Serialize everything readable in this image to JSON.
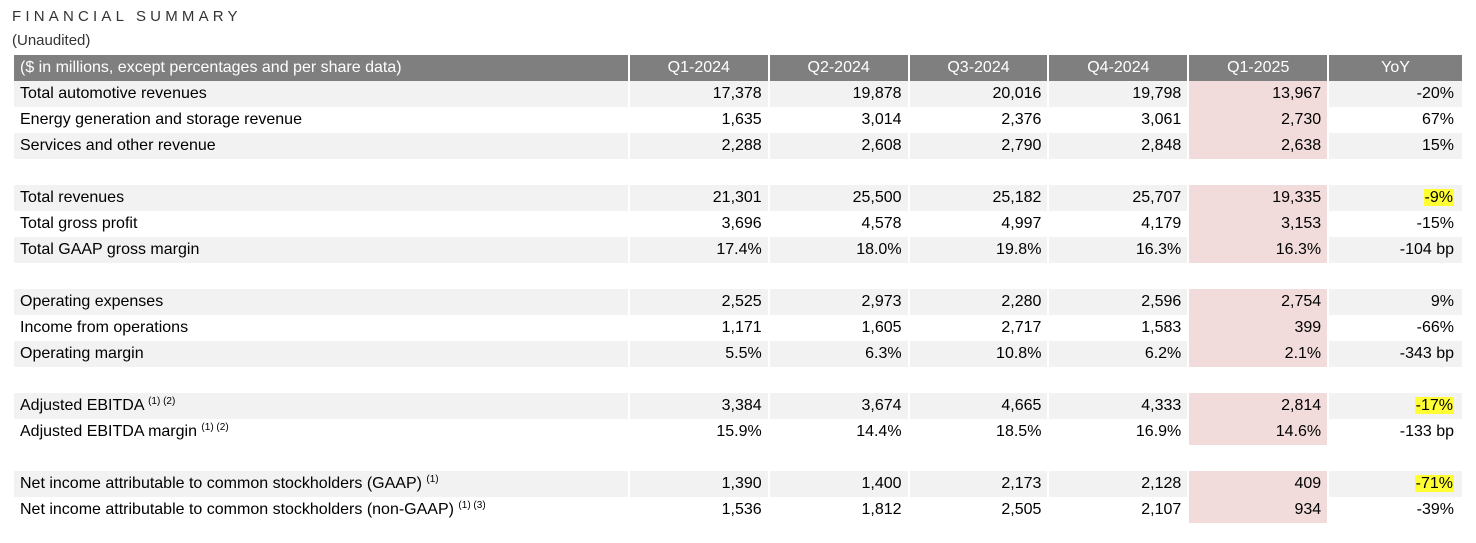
{
  "title": "FINANCIAL SUMMARY",
  "subtitle": "(Unaudited)",
  "table": {
    "header": [
      "($ in millions, except percentages and per share data)",
      "Q1-2024",
      "Q2-2024",
      "Q3-2024",
      "Q4-2024",
      "Q1-2025",
      "YoY"
    ],
    "groups": [
      [
        {
          "label": "Total automotive revenues",
          "sup": "",
          "values": [
            "17,378",
            "19,878",
            "20,016",
            "19,798",
            "13,967"
          ],
          "yoy": "-20%",
          "yoy_highlight": false
        },
        {
          "label": "Energy generation and storage revenue",
          "sup": "",
          "values": [
            "1,635",
            "3,014",
            "2,376",
            "3,061",
            "2,730"
          ],
          "yoy": "67%",
          "yoy_highlight": false
        },
        {
          "label": "Services and other revenue",
          "sup": "",
          "values": [
            "2,288",
            "2,608",
            "2,790",
            "2,848",
            "2,638"
          ],
          "yoy": "15%",
          "yoy_highlight": false
        }
      ],
      [
        {
          "label": "Total revenues",
          "sup": "",
          "values": [
            "21,301",
            "25,500",
            "25,182",
            "25,707",
            "19,335"
          ],
          "yoy": "-9%",
          "yoy_highlight": true
        },
        {
          "label": "Total gross profit",
          "sup": "",
          "values": [
            "3,696",
            "4,578",
            "4,997",
            "4,179",
            "3,153"
          ],
          "yoy": "-15%",
          "yoy_highlight": false
        },
        {
          "label": "Total GAAP gross margin",
          "sup": "",
          "values": [
            "17.4%",
            "18.0%",
            "19.8%",
            "16.3%",
            "16.3%"
          ],
          "yoy": "-104 bp",
          "yoy_highlight": false
        }
      ],
      [
        {
          "label": "Operating expenses",
          "sup": "",
          "values": [
            "2,525",
            "2,973",
            "2,280",
            "2,596",
            "2,754"
          ],
          "yoy": "9%",
          "yoy_highlight": false
        },
        {
          "label": "Income from operations",
          "sup": "",
          "values": [
            "1,171",
            "1,605",
            "2,717",
            "1,583",
            "399"
          ],
          "yoy": "-66%",
          "yoy_highlight": false
        },
        {
          "label": "Operating margin",
          "sup": "",
          "values": [
            "5.5%",
            "6.3%",
            "10.8%",
            "6.2%",
            "2.1%"
          ],
          "yoy": "-343 bp",
          "yoy_highlight": false
        }
      ],
      [
        {
          "label": "Adjusted EBITDA",
          "sup": "(1) (2)",
          "values": [
            "3,384",
            "3,674",
            "4,665",
            "4,333",
            "2,814"
          ],
          "yoy": "-17%",
          "yoy_highlight": true
        },
        {
          "label": "Adjusted EBITDA margin",
          "sup": "(1) (2)",
          "values": [
            "15.9%",
            "14.4%",
            "18.5%",
            "16.9%",
            "14.6%"
          ],
          "yoy": "-133 bp",
          "yoy_highlight": false
        }
      ],
      [
        {
          "label": "Net income attributable to common stockholders (GAAP)",
          "sup": "(1)",
          "values": [
            "1,390",
            "1,400",
            "2,173",
            "2,128",
            "409"
          ],
          "yoy": "-71%",
          "yoy_highlight": true
        },
        {
          "label": "Net income attributable to common stockholders (non-GAAP)",
          "sup": "(1) (3)",
          "values": [
            "1,536",
            "1,812",
            "2,505",
            "2,107",
            "934"
          ],
          "yoy": "-39%",
          "yoy_highlight": false
        }
      ]
    ],
    "highlight_color": "#f2dcdb",
    "yoy_marker_color": "#ffff33",
    "header_color": "#7f7f7f"
  }
}
